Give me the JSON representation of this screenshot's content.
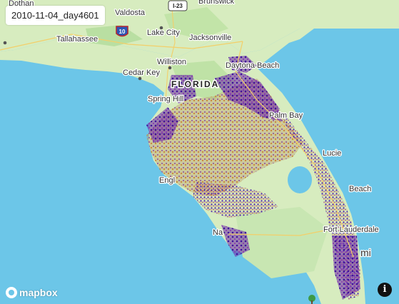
{
  "date_label": "2010-11-04_day4601",
  "state_label": "FLORIDA",
  "cities": [
    {
      "name": "Dothan"
    },
    {
      "name": "Valdosta"
    },
    {
      "name": "Brunswick"
    },
    {
      "name": "Tallahassee"
    },
    {
      "name": "Lake City"
    },
    {
      "name": "Jacksonville"
    },
    {
      "name": "Williston"
    },
    {
      "name": "Daytona Beach"
    },
    {
      "name": "Cedar Key"
    },
    {
      "name": "Spring Hill"
    },
    {
      "name": "Palm Bay"
    },
    {
      "name": "Lucie"
    },
    {
      "name": "Engl"
    },
    {
      "name": "Beach"
    },
    {
      "name": "Fort Lauderdale"
    },
    {
      "name": "Na"
    },
    {
      "name": "mi"
    }
  ],
  "shields": [
    {
      "text": "I-23",
      "kind": "us-highway"
    },
    {
      "text": "10",
      "kind": "interstate"
    }
  ],
  "attribution": {
    "logo_text": "mapbox",
    "logo_icon": "mapbox-logo-icon",
    "info_icon": "info-icon",
    "info_glyph": "i"
  },
  "colors": {
    "water": "#6cc6e8",
    "land": "#d7ecbf",
    "coverage_dark": "#4b16a8",
    "coverage_mid": "#7b3aa0",
    "coverage_warm": "#c9873e"
  }
}
